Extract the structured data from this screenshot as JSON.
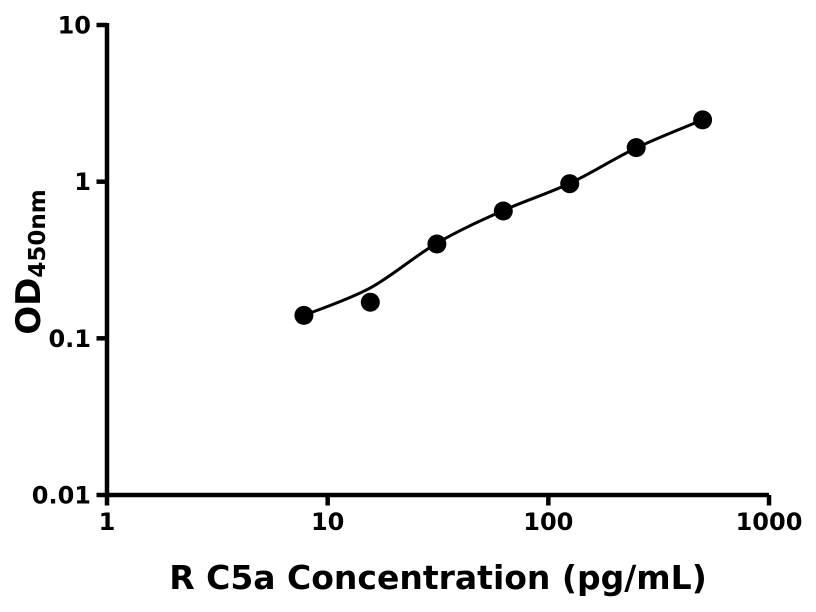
{
  "figure": {
    "background": "#ffffff",
    "ink_color": "#000000"
  },
  "chart_data": {
    "type": "scatter",
    "title": "",
    "xlabel": "R C5a Concentration (pg/mL)",
    "ylabel": {
      "main": "OD",
      "subscript": "450nm"
    },
    "x_scale": "log",
    "y_scale": "log",
    "xlim": [
      1,
      1000
    ],
    "ylim": [
      0.01,
      10
    ],
    "grid": false,
    "legend": "none",
    "x_ticks": [
      {
        "value": 1,
        "label": "1"
      },
      {
        "value": 10,
        "label": "10"
      },
      {
        "value": 100,
        "label": "100"
      },
      {
        "value": 1000,
        "label": "1000"
      }
    ],
    "y_ticks": [
      {
        "value": 10,
        "label": "10"
      },
      {
        "value": 1,
        "label": "1"
      },
      {
        "value": 0.1,
        "label": "0.1"
      },
      {
        "value": 0.01,
        "label": "0.01"
      }
    ],
    "series": [
      {
        "name": "standard-curve-points",
        "marker": "circle",
        "color": "#000000",
        "points": [
          {
            "x": 7.8,
            "y": 0.14
          },
          {
            "x": 15.6,
            "y": 0.17
          },
          {
            "x": 31.25,
            "y": 0.4
          },
          {
            "x": 62.5,
            "y": 0.65
          },
          {
            "x": 125,
            "y": 0.97
          },
          {
            "x": 250,
            "y": 1.65
          },
          {
            "x": 500,
            "y": 2.48
          }
        ]
      }
    ],
    "fit_line": {
      "name": "fitted-standard-curve",
      "color": "#000000",
      "points": [
        [
          7.8,
          0.14
        ],
        [
          15.6,
          0.21
        ],
        [
          31.25,
          0.405
        ],
        [
          62.5,
          0.655
        ],
        [
          125,
          0.975
        ],
        [
          250,
          1.64
        ],
        [
          500,
          2.48
        ]
      ]
    }
  }
}
